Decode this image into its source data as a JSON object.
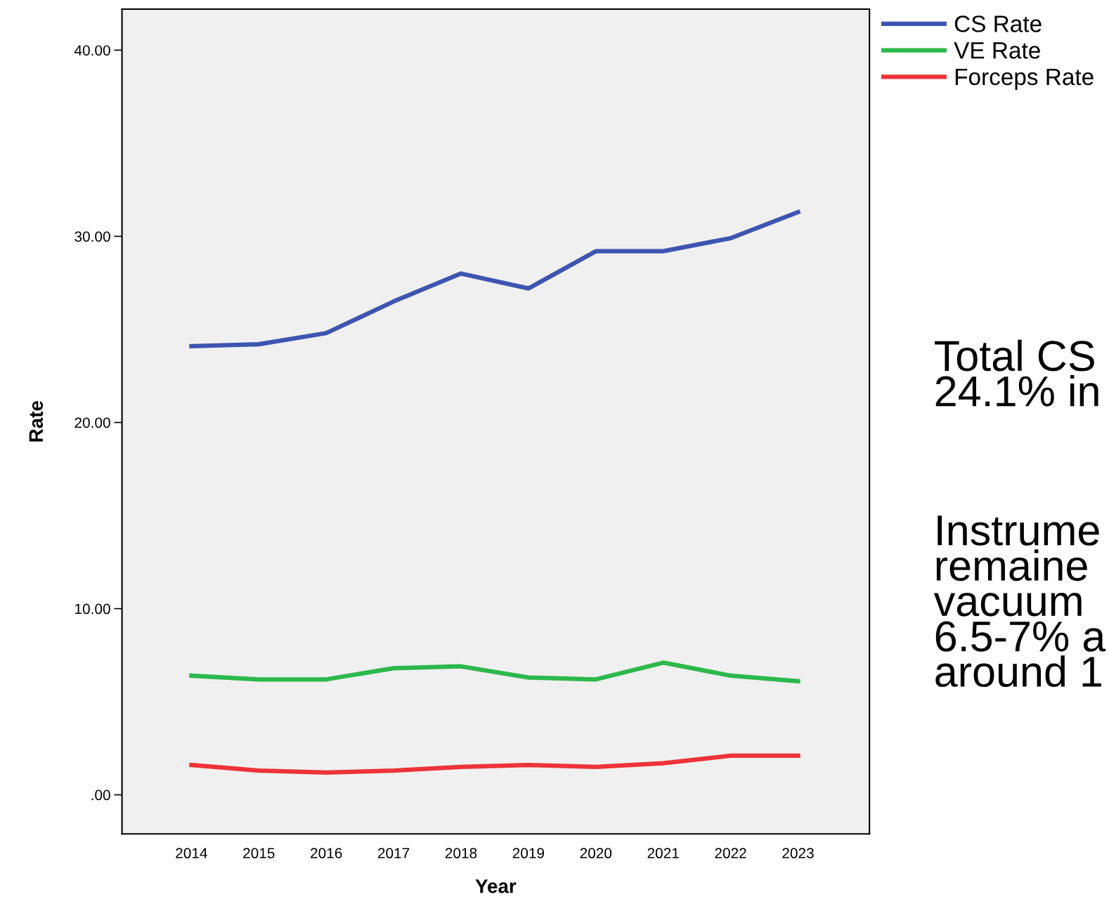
{
  "chart_data": {
    "type": "line",
    "xlabel": "Year",
    "ylabel": "Rate",
    "categories": [
      "2014",
      "2015",
      "2016",
      "2017",
      "2018",
      "2019",
      "2020",
      "2021",
      "2022",
      "2023"
    ],
    "series": [
      {
        "name": "CS Rate",
        "color": "#3d55b0",
        "values": [
          24.1,
          24.2,
          24.8,
          26.5,
          28.0,
          27.2,
          29.2,
          29.2,
          29.9,
          31.3
        ]
      },
      {
        "name": "VE Rate",
        "color": "#2db84b",
        "values": [
          6.4,
          6.2,
          6.2,
          6.8,
          6.9,
          6.3,
          6.2,
          7.1,
          6.4,
          6.1
        ]
      },
      {
        "name": "Forceps Rate",
        "color": "#ee3338",
        "values": [
          1.6,
          1.3,
          1.2,
          1.3,
          1.5,
          1.6,
          1.5,
          1.7,
          2.1,
          2.1
        ]
      }
    ],
    "ylim": [
      -2.1,
      42.2
    ],
    "yticks": [
      {
        "value": 0,
        "label": ".00"
      },
      {
        "value": 10,
        "label": "10.00"
      },
      {
        "value": 20,
        "label": "20.00"
      },
      {
        "value": 30,
        "label": "30.00"
      },
      {
        "value": 40,
        "label": "40.00"
      }
    ],
    "grid": false,
    "legend": "top right",
    "marker": "none",
    "line_style": "solid",
    "annotations": [
      "Total CS\n24.1% in",
      "Instrume\nremaine\nvacuum\n6.5-7% a\naround 1"
    ]
  }
}
